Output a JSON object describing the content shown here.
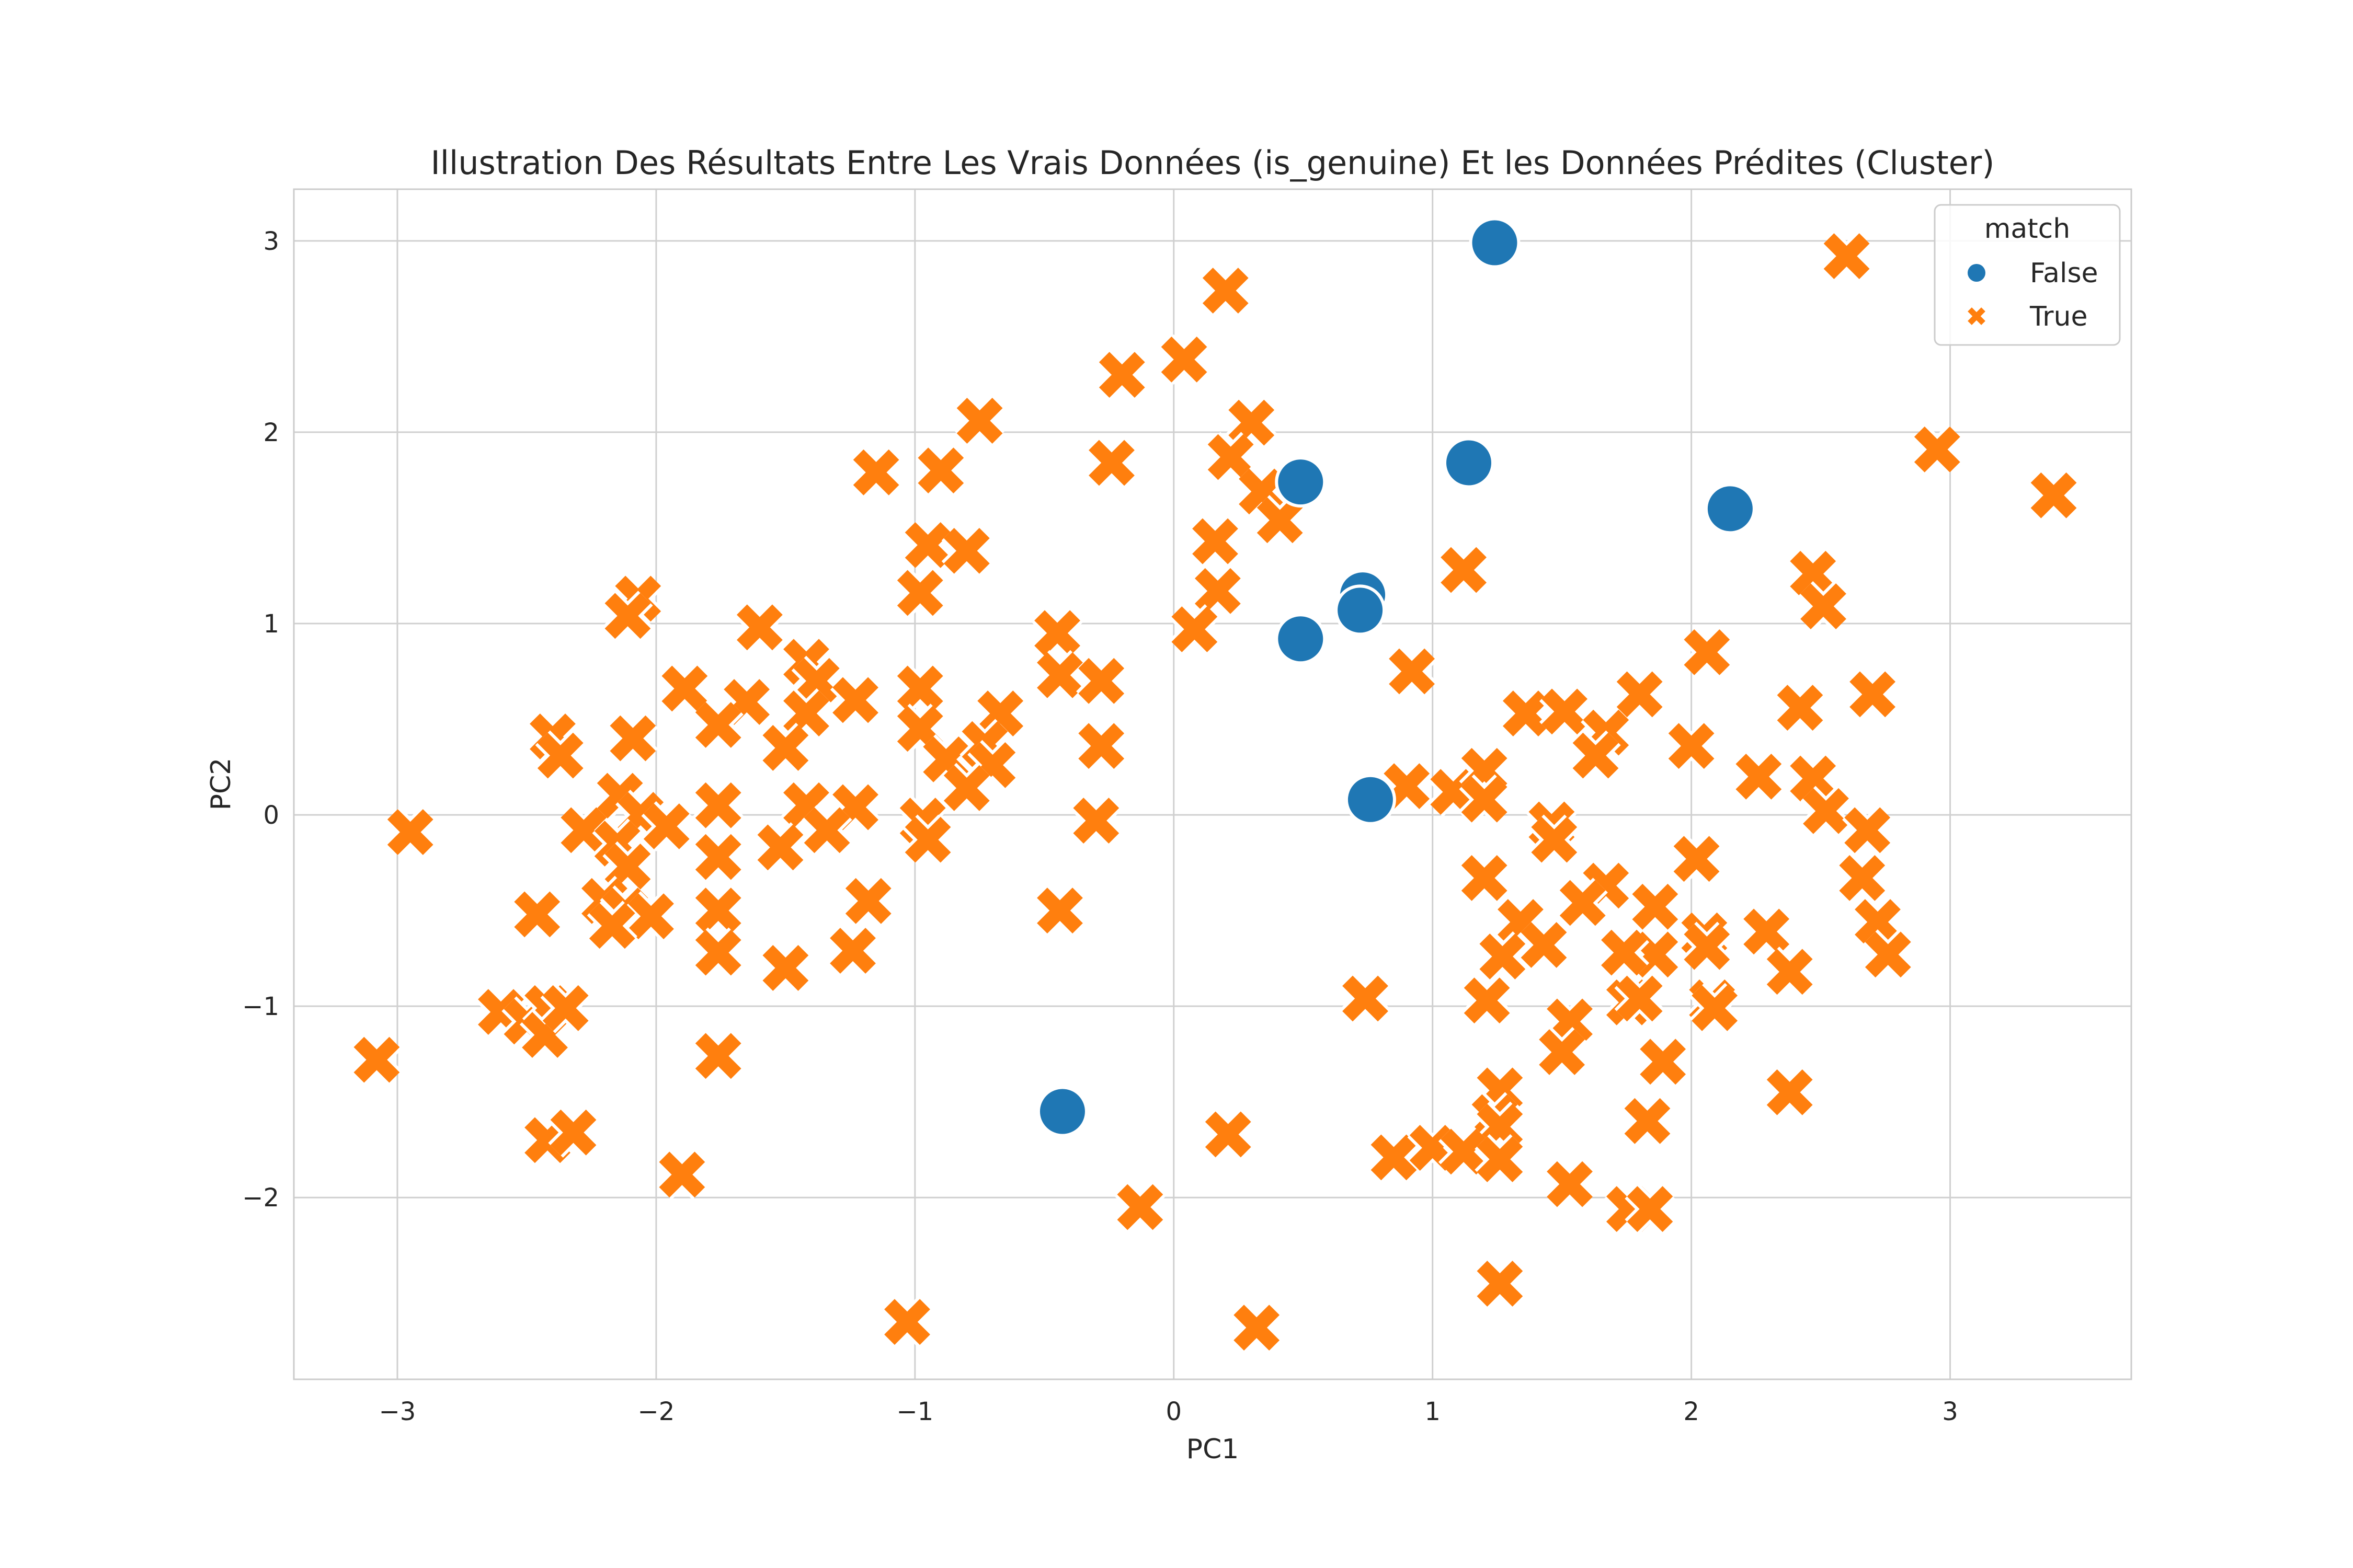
{
  "chart_data": {
    "type": "scatter",
    "title": "Illustration Des Résultats Entre Les Vrais Données (is_genuine) Et les Données Prédites (Cluster)",
    "xlabel": "PC1",
    "ylabel": "PC2",
    "xlim": [
      -3.4,
      3.7
    ],
    "ylim": [
      -2.95,
      3.27
    ],
    "xticks": [
      -3,
      -2,
      -1,
      0,
      1,
      2,
      3
    ],
    "yticks": [
      -2,
      -1,
      0,
      1,
      2,
      3
    ],
    "xtick_labels": [
      "−3",
      "−2",
      "−1",
      "0",
      "1",
      "2",
      "3"
    ],
    "ytick_labels": [
      "−2",
      "−1",
      "0",
      "1",
      "2",
      "3"
    ],
    "grid": true,
    "legend": {
      "title": "match",
      "placement": "top-right"
    },
    "colors": {
      "False": "#1f77b4",
      "True": "#ff7f0e"
    },
    "series": [
      {
        "name": "False",
        "marker": "circle",
        "points": [
          [
            1.24,
            2.99
          ],
          [
            1.14,
            1.84
          ],
          [
            2.15,
            1.6
          ],
          [
            0.49,
            1.74
          ],
          [
            0.73,
            1.15
          ],
          [
            0.72,
            1.07
          ],
          [
            0.49,
            0.92
          ],
          [
            0.76,
            0.08
          ],
          [
            -0.43,
            -1.55
          ]
        ]
      },
      {
        "name": "True",
        "marker": "x",
        "points": [
          [
            0.2,
            2.74
          ],
          [
            -0.2,
            2.3
          ],
          [
            0.04,
            2.38
          ],
          [
            0.3,
            2.05
          ],
          [
            -0.75,
            2.06
          ],
          [
            -0.24,
            1.84
          ],
          [
            -1.15,
            1.79
          ],
          [
            -0.9,
            1.8
          ],
          [
            0.22,
            1.87
          ],
          [
            0.34,
            1.69
          ],
          [
            0.41,
            1.54
          ],
          [
            0.16,
            1.43
          ],
          [
            -0.95,
            1.41
          ],
          [
            -0.8,
            1.38
          ],
          [
            2.6,
            2.92
          ],
          [
            2.95,
            1.91
          ],
          [
            3.4,
            1.67
          ],
          [
            -2.07,
            1.13
          ],
          [
            -2.11,
            1.04
          ],
          [
            -0.98,
            1.16
          ],
          [
            -1.6,
            0.98
          ],
          [
            0.17,
            1.17
          ],
          [
            0.08,
            0.97
          ],
          [
            -0.45,
            0.95
          ],
          [
            -1.42,
            0.8
          ],
          [
            -1.38,
            0.7
          ],
          [
            -1.89,
            0.66
          ],
          [
            -1.65,
            0.59
          ],
          [
            -1.23,
            0.6
          ],
          [
            -0.98,
            0.66
          ],
          [
            -0.44,
            0.73
          ],
          [
            -0.28,
            0.7
          ],
          [
            -0.67,
            0.53
          ],
          [
            -1.42,
            0.53
          ],
          [
            -1.76,
            0.47
          ],
          [
            -2.4,
            0.41
          ],
          [
            -2.09,
            0.4
          ],
          [
            -2.37,
            0.31
          ],
          [
            -1.5,
            0.35
          ],
          [
            -0.98,
            0.45
          ],
          [
            -0.88,
            0.29
          ],
          [
            -0.73,
            0.37
          ],
          [
            -0.7,
            0.26
          ],
          [
            -0.28,
            0.36
          ],
          [
            -0.8,
            0.14
          ],
          [
            -2.14,
            0.1
          ],
          [
            -2.06,
            0.0
          ],
          [
            -1.96,
            -0.06
          ],
          [
            -1.76,
            0.05
          ],
          [
            -1.42,
            0.05
          ],
          [
            -1.23,
            0.04
          ],
          [
            -2.28,
            -0.08
          ],
          [
            -2.15,
            -0.15
          ],
          [
            -2.11,
            -0.27
          ],
          [
            -1.76,
            -0.22
          ],
          [
            -1.52,
            -0.17
          ],
          [
            -1.34,
            -0.08
          ],
          [
            -0.97,
            -0.03
          ],
          [
            -0.95,
            -0.13
          ],
          [
            -0.3,
            -0.03
          ],
          [
            -2.95,
            -0.09
          ],
          [
            -2.2,
            -0.45
          ],
          [
            -2.12,
            -0.5
          ],
          [
            -2.02,
            -0.53
          ],
          [
            -2.17,
            -0.58
          ],
          [
            -2.46,
            -0.52
          ],
          [
            -1.76,
            -0.5
          ],
          [
            -1.18,
            -0.45
          ],
          [
            -0.44,
            -0.5
          ],
          [
            -1.76,
            -0.72
          ],
          [
            -1.5,
            -0.8
          ],
          [
            -1.24,
            -0.71
          ],
          [
            -2.6,
            -1.03
          ],
          [
            -2.5,
            -1.08
          ],
          [
            -2.42,
            -1.01
          ],
          [
            -2.43,
            -1.15
          ],
          [
            -2.35,
            -1.01
          ],
          [
            -3.08,
            -1.28
          ],
          [
            -1.76,
            -1.26
          ],
          [
            -2.42,
            -1.7
          ],
          [
            -2.32,
            -1.66
          ],
          [
            -1.9,
            -1.88
          ],
          [
            -1.03,
            -2.65
          ],
          [
            -0.13,
            -2.05
          ],
          [
            0.21,
            -1.67
          ],
          [
            0.32,
            -2.68
          ],
          [
            0.92,
            0.75
          ],
          [
            1.12,
            1.28
          ],
          [
            2.47,
            1.26
          ],
          [
            2.51,
            1.09
          ],
          [
            2.06,
            0.85
          ],
          [
            1.36,
            0.53
          ],
          [
            1.51,
            0.54
          ],
          [
            1.8,
            0.63
          ],
          [
            1.67,
            0.43
          ],
          [
            1.63,
            0.31
          ],
          [
            2.0,
            0.36
          ],
          [
            2.42,
            0.56
          ],
          [
            2.7,
            0.63
          ],
          [
            0.9,
            0.15
          ],
          [
            1.08,
            0.12
          ],
          [
            1.2,
            0.23
          ],
          [
            2.26,
            0.2
          ],
          [
            2.47,
            0.19
          ],
          [
            2.52,
            0.02
          ],
          [
            1.2,
            0.08
          ],
          [
            1.46,
            -0.05
          ],
          [
            1.47,
            -0.13
          ],
          [
            2.68,
            -0.08
          ],
          [
            2.02,
            -0.23
          ],
          [
            1.2,
            -0.33
          ],
          [
            1.34,
            -0.56
          ],
          [
            1.67,
            -0.37
          ],
          [
            1.58,
            -0.46
          ],
          [
            1.86,
            -0.48
          ],
          [
            2.66,
            -0.33
          ],
          [
            2.72,
            -0.56
          ],
          [
            2.29,
            -0.61
          ],
          [
            2.05,
            -0.63
          ],
          [
            2.06,
            -0.69
          ],
          [
            1.86,
            -0.73
          ],
          [
            1.74,
            -0.72
          ],
          [
            1.43,
            -0.68
          ],
          [
            1.27,
            -0.74
          ],
          [
            2.76,
            -0.73
          ],
          [
            2.38,
            -0.82
          ],
          [
            0.74,
            -0.96
          ],
          [
            1.21,
            -0.97
          ],
          [
            1.76,
            -0.98
          ],
          [
            1.8,
            -0.96
          ],
          [
            2.08,
            -0.98
          ],
          [
            2.09,
            -1.01
          ],
          [
            1.53,
            -1.08
          ],
          [
            1.5,
            -1.24
          ],
          [
            1.89,
            -1.29
          ],
          [
            1.26,
            -1.44
          ],
          [
            1.24,
            -1.58
          ],
          [
            1.26,
            -1.63
          ],
          [
            1.83,
            -1.6
          ],
          [
            2.38,
            -1.45
          ],
          [
            0.85,
            -1.79
          ],
          [
            1.0,
            -1.74
          ],
          [
            1.12,
            -1.76
          ],
          [
            1.26,
            -1.8
          ],
          [
            1.53,
            -1.93
          ],
          [
            1.76,
            -2.06
          ],
          [
            1.84,
            -2.06
          ],
          [
            1.26,
            -2.45
          ]
        ]
      }
    ]
  }
}
